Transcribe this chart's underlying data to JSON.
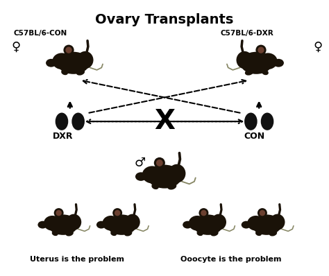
{
  "title": "Ovary Transplants",
  "title_fontsize": 14,
  "title_fontweight": "bold",
  "bg_color": "#ffffff",
  "labels": {
    "top_left": "C57BL/6-CON",
    "top_right": "C57BL/6-DXR",
    "mid_left": "DXR",
    "mid_right": "CON",
    "bottom_left": "Uterus is the problem",
    "bottom_right": "Ooocyte is the problem"
  },
  "text_color": "#000000",
  "arrow_color": "#000000",
  "mouse_body_color": "#1a1208",
  "mouse_ear_color": "#6b4030",
  "ovary_color": "#111111"
}
